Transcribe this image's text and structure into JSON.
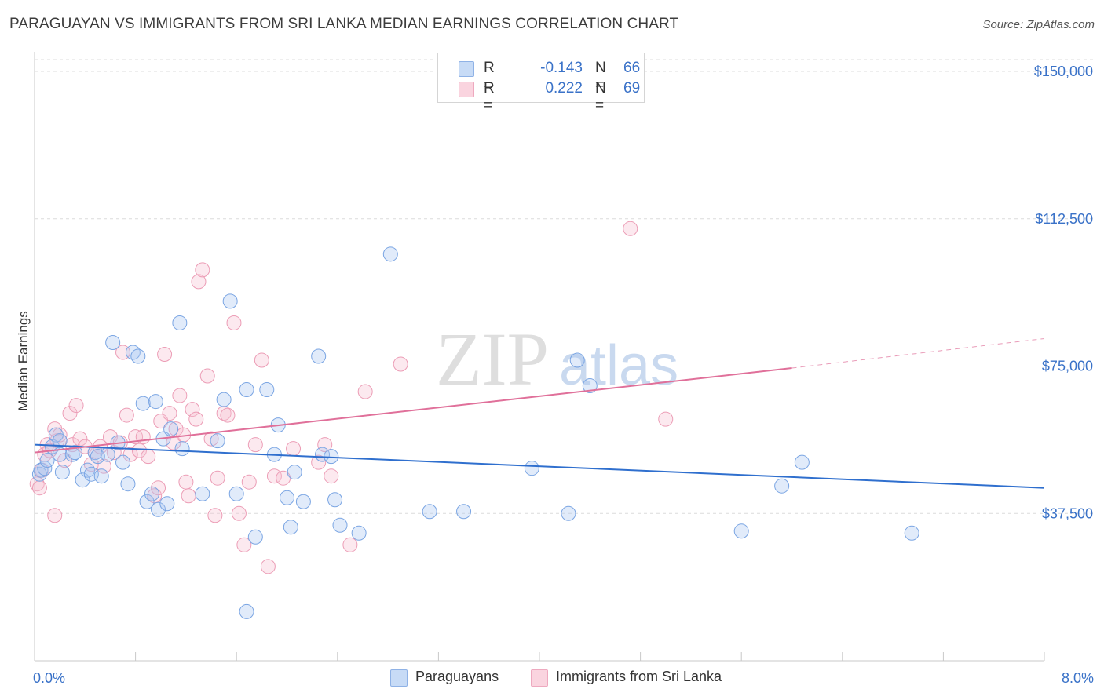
{
  "title": "PARAGUAYAN VS IMMIGRANTS FROM SRI LANKA MEDIAN EARNINGS CORRELATION CHART",
  "source": "Source: ZipAtlas.com",
  "watermark": {
    "zip": "ZIP",
    "atlas": "atlas"
  },
  "colors": {
    "blue_fill": "#a9c6f0",
    "blue_line": "#2f6fce",
    "pink_fill": "#f6bfd0",
    "pink_line": "#e0709a",
    "accent_text": "#3a72c8",
    "grid": "#dcdcdc"
  },
  "legend": {
    "rows": [
      {
        "r_label": "R =",
        "r_value": "-0.143",
        "n_label": "N =",
        "n_value": "66"
      },
      {
        "r_label": "R =",
        "r_value": "0.222",
        "n_label": "N =",
        "n_value": "69"
      }
    ],
    "bottom": [
      "Paraguayans",
      "Immigrants from Sri Lanka"
    ]
  },
  "chart_data": {
    "type": "scatter",
    "title": "PARAGUAYAN VS IMMIGRANTS FROM SRI LANKA MEDIAN EARNINGS CORRELATION CHART",
    "xlabel": "",
    "ylabel": "Median Earnings",
    "xlim": [
      0,
      8
    ],
    "ylim": [
      0,
      153000
    ],
    "x_tick_labels": [
      "0.0%",
      "8.0%"
    ],
    "y_ticks": [
      37500,
      75000,
      112500,
      150000
    ],
    "y_tick_labels": [
      "$37,500",
      "$75,000",
      "$112,500",
      "$150,000"
    ],
    "grid": true,
    "series": [
      {
        "name": "Paraguayans",
        "r": -0.143,
        "n": 66,
        "trend": {
          "x": [
            0,
            8
          ],
          "y": [
            55000,
            44000
          ]
        },
        "points": [
          [
            0.04,
            47500
          ],
          [
            0.05,
            48500
          ],
          [
            0.08,
            49000
          ],
          [
            0.1,
            51000
          ],
          [
            0.14,
            54500
          ],
          [
            0.17,
            57500
          ],
          [
            0.2,
            56000
          ],
          [
            0.2,
            52500
          ],
          [
            0.22,
            48000
          ],
          [
            0.3,
            52500
          ],
          [
            0.32,
            53000
          ],
          [
            0.38,
            46000
          ],
          [
            0.42,
            48500
          ],
          [
            0.45,
            47500
          ],
          [
            0.48,
            53000
          ],
          [
            0.5,
            52000
          ],
          [
            0.53,
            47000
          ],
          [
            0.58,
            52500
          ],
          [
            0.62,
            81000
          ],
          [
            0.66,
            55500
          ],
          [
            0.7,
            50500
          ],
          [
            0.74,
            45000
          ],
          [
            0.78,
            78500
          ],
          [
            0.82,
            77500
          ],
          [
            0.86,
            65500
          ],
          [
            0.89,
            40500
          ],
          [
            0.93,
            42500
          ],
          [
            0.96,
            66000
          ],
          [
            0.98,
            38500
          ],
          [
            1.02,
            56500
          ],
          [
            1.05,
            40000
          ],
          [
            1.08,
            59000
          ],
          [
            1.15,
            86000
          ],
          [
            1.17,
            54000
          ],
          [
            1.33,
            42500
          ],
          [
            1.45,
            56000
          ],
          [
            1.5,
            66500
          ],
          [
            1.55,
            91500
          ],
          [
            1.6,
            42500
          ],
          [
            1.68,
            12500
          ],
          [
            1.68,
            69000
          ],
          [
            1.75,
            31500
          ],
          [
            1.84,
            69000
          ],
          [
            1.9,
            52500
          ],
          [
            1.93,
            60000
          ],
          [
            2.0,
            41500
          ],
          [
            2.03,
            34000
          ],
          [
            2.06,
            48000
          ],
          [
            2.13,
            40500
          ],
          [
            2.25,
            77500
          ],
          [
            2.28,
            52500
          ],
          [
            2.35,
            52000
          ],
          [
            2.38,
            41000
          ],
          [
            2.42,
            34500
          ],
          [
            2.57,
            32500
          ],
          [
            2.82,
            103500
          ],
          [
            3.13,
            38000
          ],
          [
            3.4,
            38000
          ],
          [
            3.94,
            49000
          ],
          [
            4.23,
            37500
          ],
          [
            4.3,
            76500
          ],
          [
            4.4,
            70000
          ],
          [
            5.6,
            33000
          ],
          [
            5.92,
            44500
          ],
          [
            6.08,
            50500
          ],
          [
            6.95,
            32500
          ]
        ]
      },
      {
        "name": "Immigrants from Sri Lanka",
        "r": 0.222,
        "n": 69,
        "trend": {
          "x": [
            0,
            6
          ],
          "y": [
            53000,
            74500
          ]
        },
        "trend_dashed": {
          "x": [
            6,
            8
          ],
          "y": [
            74500,
            82000
          ]
        },
        "points": [
          [
            0.02,
            45000
          ],
          [
            0.04,
            44000
          ],
          [
            0.06,
            48500
          ],
          [
            0.08,
            52500
          ],
          [
            0.1,
            55000
          ],
          [
            0.12,
            53500
          ],
          [
            0.16,
            59000
          ],
          [
            0.18,
            56000
          ],
          [
            0.2,
            57500
          ],
          [
            0.24,
            51000
          ],
          [
            0.28,
            63000
          ],
          [
            0.3,
            55000
          ],
          [
            0.33,
            65000
          ],
          [
            0.36,
            56500
          ],
          [
            0.4,
            54500
          ],
          [
            0.45,
            50000
          ],
          [
            0.48,
            53000
          ],
          [
            0.52,
            54500
          ],
          [
            0.55,
            49500
          ],
          [
            0.6,
            57000
          ],
          [
            0.63,
            53000
          ],
          [
            0.68,
            55500
          ],
          [
            0.7,
            78500
          ],
          [
            0.73,
            62500
          ],
          [
            0.76,
            52500
          ],
          [
            0.8,
            57000
          ],
          [
            0.83,
            53500
          ],
          [
            0.86,
            57000
          ],
          [
            0.9,
            52000
          ],
          [
            0.95,
            42000
          ],
          [
            0.98,
            44000
          ],
          [
            1.0,
            61000
          ],
          [
            1.03,
            78000
          ],
          [
            1.07,
            63000
          ],
          [
            1.1,
            55500
          ],
          [
            1.12,
            59000
          ],
          [
            1.15,
            67500
          ],
          [
            1.18,
            57500
          ],
          [
            1.2,
            45500
          ],
          [
            1.22,
            42000
          ],
          [
            1.25,
            64000
          ],
          [
            1.28,
            61500
          ],
          [
            1.3,
            96500
          ],
          [
            1.33,
            99500
          ],
          [
            1.37,
            72500
          ],
          [
            1.4,
            56500
          ],
          [
            1.43,
            37000
          ],
          [
            1.45,
            46500
          ],
          [
            1.5,
            63000
          ],
          [
            1.53,
            62500
          ],
          [
            1.58,
            86000
          ],
          [
            1.62,
            37500
          ],
          [
            1.66,
            29500
          ],
          [
            1.7,
            45500
          ],
          [
            1.75,
            55000
          ],
          [
            1.8,
            76500
          ],
          [
            1.85,
            24000
          ],
          [
            1.9,
            47000
          ],
          [
            1.97,
            46500
          ],
          [
            2.05,
            54000
          ],
          [
            2.25,
            50500
          ],
          [
            2.3,
            55000
          ],
          [
            2.35,
            47000
          ],
          [
            2.5,
            29500
          ],
          [
            2.62,
            68500
          ],
          [
            2.9,
            75500
          ],
          [
            4.72,
            110000
          ],
          [
            5.0,
            61500
          ],
          [
            0.16,
            37000
          ]
        ]
      }
    ]
  }
}
